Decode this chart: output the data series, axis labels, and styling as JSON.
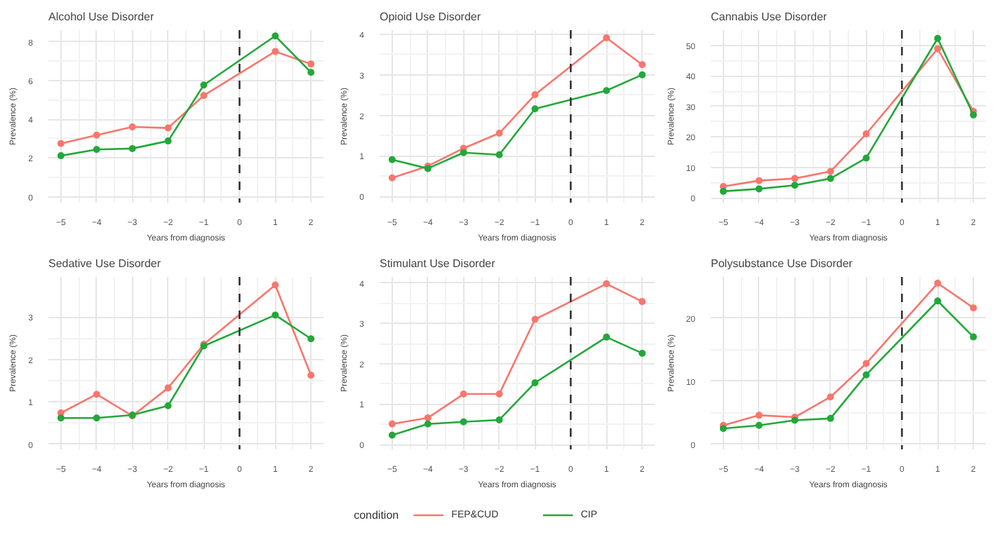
{
  "chart_data": [
    {
      "type": "line",
      "title": "Alcohol Use Disorder",
      "xlabel": "Years from diagnosis",
      "ylabel": "Prevalence (%)",
      "legend": "bottom",
      "legend_title": "condition",
      "marker": "circle",
      "grid": true,
      "x": [
        -5,
        -4,
        -3,
        -2,
        -1,
        1,
        2
      ],
      "xlim": [
        -5.35,
        2.35
      ],
      "xticks": [
        -5,
        -4,
        -3,
        -2,
        -1,
        0,
        1,
        2
      ],
      "ylim": [
        -0.3,
        8.6
      ],
      "yticks": [
        0,
        2,
        4,
        6,
        8
      ],
      "ref_lines": [
        {
          "axis": "x",
          "value": 0,
          "line_style": "dashed",
          "color": "#333333"
        }
      ],
      "series": [
        {
          "name": "FEP&CUD",
          "color": "#f8766d",
          "values": [
            2.75,
            3.18,
            3.61,
            3.55,
            5.23,
            7.5,
            6.85
          ]
        },
        {
          "name": "CIP",
          "color": "#22a83a",
          "values": [
            2.12,
            2.44,
            2.49,
            2.88,
            5.77,
            8.3,
            6.42
          ]
        }
      ]
    },
    {
      "type": "line",
      "title": "Opioid Use Disorder",
      "xlabel": "Years from diagnosis",
      "ylabel": "Prevalence (%)",
      "marker": "circle",
      "grid": true,
      "x": [
        -5,
        -4,
        -3,
        -2,
        -1,
        1,
        2
      ],
      "xlim": [
        -5.35,
        2.35
      ],
      "xticks": [
        -5,
        -4,
        -3,
        -2,
        -1,
        0,
        1,
        2
      ],
      "ylim": [
        -0.15,
        4.1
      ],
      "yticks": [
        0,
        1,
        2,
        3,
        4
      ],
      "ref_lines": [
        {
          "axis": "x",
          "value": 0,
          "line_style": "dashed",
          "color": "#333333"
        }
      ],
      "series": [
        {
          "color": "#f8766d",
          "values": [
            0.46,
            0.75,
            1.19,
            1.56,
            2.51,
            3.91,
            3.25
          ]
        },
        {
          "color": "#22a83a",
          "values": [
            0.91,
            0.69,
            1.08,
            1.03,
            2.16,
            2.61,
            3.0
          ]
        }
      ]
    },
    {
      "type": "line",
      "title": "Cannabis Use Disorder",
      "xlabel": "Years from diagnosis",
      "ylabel": "Prevalence (%)",
      "marker": "circle",
      "grid": true,
      "x": [
        -5,
        -4,
        -3,
        -2,
        -1,
        1,
        2
      ],
      "xlim": [
        -5.35,
        2.35
      ],
      "xticks": [
        -5,
        -4,
        -3,
        -2,
        -1,
        0,
        1,
        2
      ],
      "ylim": [
        -1.5,
        55
      ],
      "yticks": [
        0,
        10,
        20,
        30,
        40,
        50
      ],
      "ref_lines": [
        {
          "axis": "x",
          "value": 0,
          "line_style": "dashed",
          "color": "#333333"
        }
      ],
      "series": [
        {
          "color": "#f8766d",
          "values": [
            3.8,
            5.7,
            6.4,
            8.7,
            21,
            48.9,
            28.4
          ]
        },
        {
          "color": "#22a83a",
          "values": [
            2.2,
            3.0,
            4.2,
            6.4,
            13.1,
            52.3,
            27.2
          ]
        }
      ]
    },
    {
      "type": "line",
      "title": "Sedative Use Disorder",
      "xlabel": "Years from diagnosis",
      "ylabel": "Prevalence (%)",
      "marker": "circle",
      "grid": true,
      "x": [
        -5,
        -4,
        -3,
        -2,
        -1,
        1,
        2
      ],
      "xlim": [
        -5.35,
        2.35
      ],
      "xticks": [
        -5,
        -4,
        -3,
        -2,
        -1,
        0,
        1,
        2
      ],
      "ylim": [
        -0.12,
        3.95
      ],
      "yticks": [
        0,
        1,
        2,
        3
      ],
      "ref_lines": [
        {
          "axis": "x",
          "value": 0,
          "line_style": "dashed",
          "color": "#333333"
        }
      ],
      "series": [
        {
          "color": "#f8766d",
          "values": [
            0.74,
            1.18,
            0.67,
            1.33,
            2.36,
            3.76,
            1.63
          ]
        },
        {
          "color": "#22a83a",
          "values": [
            0.62,
            0.62,
            0.69,
            0.91,
            2.32,
            3.05,
            2.49
          ]
        }
      ]
    },
    {
      "type": "line",
      "title": "Stimulant Use Disorder",
      "xlabel": "Years from diagnosis",
      "ylabel": "Prevalence (%)",
      "marker": "circle",
      "grid": true,
      "x": [
        -5,
        -4,
        -3,
        -2,
        -1,
        1,
        2
      ],
      "xlim": [
        -5.35,
        2.35
      ],
      "xticks": [
        -5,
        -4,
        -3,
        -2,
        -1,
        0,
        1,
        2
      ],
      "ylim": [
        -0.12,
        4.15
      ],
      "yticks": [
        0,
        1,
        2,
        3,
        4
      ],
      "ref_lines": [
        {
          "axis": "x",
          "value": 0,
          "line_style": "dashed",
          "color": "#333333"
        }
      ],
      "series": [
        {
          "color": "#f8766d",
          "values": [
            0.51,
            0.66,
            1.25,
            1.25,
            3.1,
            3.98,
            3.54
          ]
        },
        {
          "color": "#22a83a",
          "values": [
            0.23,
            0.51,
            0.56,
            0.61,
            1.53,
            2.66,
            2.26
          ]
        }
      ]
    },
    {
      "type": "line",
      "title": "Polysubstance Use Disorder",
      "xlabel": "Years from diagnosis",
      "ylabel": "Prevalence (%)",
      "marker": "circle",
      "grid": true,
      "x": [
        -5,
        -4,
        -3,
        -2,
        -1,
        1,
        2
      ],
      "xlim": [
        -5.35,
        2.35
      ],
      "xticks": [
        -5,
        -4,
        -3,
        -2,
        -1,
        0,
        1,
        2
      ],
      "ylim": [
        -0.8,
        26.5
      ],
      "yticks": [
        0,
        10,
        20
      ],
      "ref_lines": [
        {
          "axis": "x",
          "value": 0,
          "line_style": "dashed",
          "color": "#333333"
        }
      ],
      "series": [
        {
          "color": "#f8766d",
          "values": [
            3.0,
            4.6,
            4.3,
            7.5,
            12.8,
            25.5,
            21.6
          ]
        },
        {
          "color": "#22a83a",
          "values": [
            2.5,
            3.0,
            3.8,
            4.1,
            11.0,
            22.7,
            17.0
          ]
        }
      ]
    }
  ]
}
